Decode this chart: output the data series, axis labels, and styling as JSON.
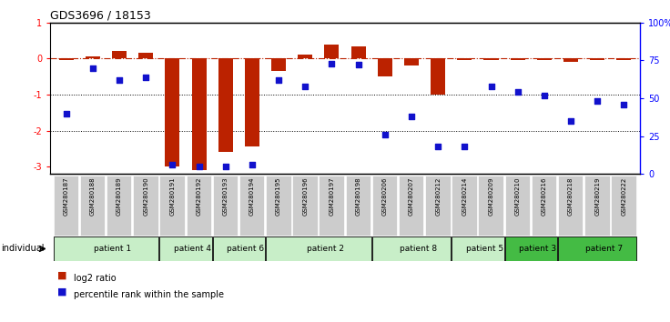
{
  "title": "GDS3696 / 18153",
  "samples": [
    "GSM280187",
    "GSM280188",
    "GSM280189",
    "GSM280190",
    "GSM280191",
    "GSM280192",
    "GSM280193",
    "GSM280194",
    "GSM280195",
    "GSM280196",
    "GSM280197",
    "GSM280198",
    "GSM280206",
    "GSM280207",
    "GSM280212",
    "GSM280214",
    "GSM280209",
    "GSM280210",
    "GSM280216",
    "GSM280218",
    "GSM280219",
    "GSM280222"
  ],
  "log2_ratio": [
    -0.05,
    0.05,
    0.2,
    0.15,
    -3.0,
    -3.1,
    -2.6,
    -2.45,
    -0.35,
    0.12,
    0.4,
    0.35,
    -0.5,
    -0.2,
    -1.0,
    -0.05,
    -0.05,
    -0.05,
    -0.05,
    -0.1,
    -0.05,
    -0.05
  ],
  "percentile": [
    40,
    70,
    62,
    64,
    6,
    5,
    5,
    6,
    62,
    58,
    73,
    72,
    26,
    38,
    18,
    18,
    58,
    54,
    52,
    35,
    48,
    46
  ],
  "patients": [
    {
      "label": "patient 1",
      "start": 0,
      "end": 4,
      "color": "#c8eec8"
    },
    {
      "label": "patient 4",
      "start": 4,
      "end": 6,
      "color": "#c8eec8"
    },
    {
      "label": "patient 6",
      "start": 6,
      "end": 8,
      "color": "#c8eec8"
    },
    {
      "label": "patient 2",
      "start": 8,
      "end": 12,
      "color": "#c8eec8"
    },
    {
      "label": "patient 8",
      "start": 12,
      "end": 15,
      "color": "#c8eec8"
    },
    {
      "label": "patient 5",
      "start": 15,
      "end": 17,
      "color": "#c8eec8"
    },
    {
      "label": "patient 3",
      "start": 17,
      "end": 19,
      "color": "#44bb44"
    },
    {
      "label": "patient 7",
      "start": 19,
      "end": 22,
      "color": "#44bb44"
    }
  ],
  "ylim_left": [
    -3.2,
    1.0
  ],
  "ylim_right": [
    0,
    100
  ],
  "yticks_left": [
    -3,
    -2,
    -1,
    0,
    1
  ],
  "yticks_right": [
    0,
    25,
    50,
    75,
    100
  ],
  "ytick_labels_right": [
    "0",
    "25",
    "50",
    "75",
    "100%"
  ],
  "hline_y": 0,
  "dotted_lines": [
    -1,
    -2
  ],
  "bar_color": "#bb2200",
  "scatter_color": "#1111cc",
  "bar_width": 0.55,
  "background_color": "#ffffff",
  "xticklabel_bg": "#cccccc"
}
